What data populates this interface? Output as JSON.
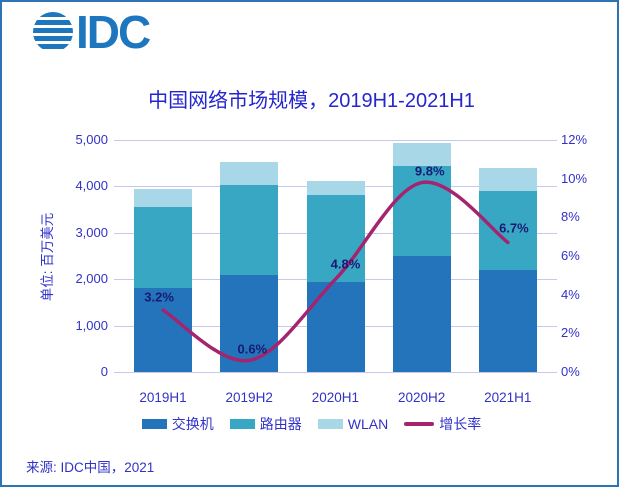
{
  "logo": {
    "text": "IDC",
    "brand_color": "#1D76BE"
  },
  "frame": {
    "border_color": "#2E74B5",
    "background": "#FFFFFF"
  },
  "source": "来源: IDC中国，2021",
  "chart_data": {
    "type": "bar",
    "subtype": "stacked-bars-with-growth-line",
    "title": "中国网络市场规模，2019H1-2021H1",
    "unit_label": "单位: 百万美元",
    "categories": [
      "2019H1",
      "2019H2",
      "2020H1",
      "2020H2",
      "2021H1"
    ],
    "series": [
      {
        "name": "交换机",
        "color": "#2374BA",
        "values": [
          1800,
          2100,
          1940,
          2500,
          2200
        ]
      },
      {
        "name": "路由器",
        "color": "#38A7C4",
        "values": [
          1750,
          1940,
          1870,
          1950,
          1700
        ]
      },
      {
        "name": "WLAN",
        "color": "#A8D8E8",
        "values": [
          400,
          480,
          300,
          480,
          490
        ]
      }
    ],
    "line_series": {
      "name": "增长率",
      "color": "#A42470",
      "values": [
        3.2,
        0.6,
        4.8,
        9.8,
        6.7
      ],
      "labels": [
        "3.2%",
        "0.6%",
        "4.8%",
        "9.8%",
        "6.7%"
      ]
    },
    "left_axis": {
      "min": 0,
      "max": 5000,
      "ticks": [
        "0",
        "1,000",
        "2,000",
        "3,000",
        "4,000",
        "5,000"
      ]
    },
    "right_axis": {
      "min": 0,
      "max": 12,
      "ticks": [
        "0%",
        "2%",
        "4%",
        "6%",
        "8%",
        "10%",
        "12%"
      ]
    },
    "grid": true,
    "gridline_color": "#C8C8EB",
    "text_color": "#3232C8",
    "title_color": "#2626CE",
    "data_label_color": "#1A1A73",
    "legend_position": "bottom"
  }
}
